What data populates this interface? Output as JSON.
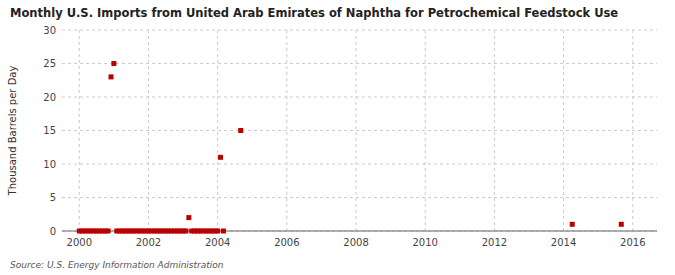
{
  "chart_data": {
    "type": "scatter",
    "title": "Monthly U.S. Imports from United Arab Emirates of Naphtha for Petrochemical Feedstock Use",
    "y_label": "Thousand Barrels per Day",
    "source": "Source: U.S. Energy Information Administration",
    "color": "#bb0000",
    "marker": "square",
    "grid": true,
    "xlim": [
      1999.5,
      2016.7
    ],
    "ylim": [
      0,
      30
    ],
    "xticks": [
      2000,
      2002,
      2004,
      2006,
      2008,
      2010,
      2012,
      2014,
      2016
    ],
    "yticks": [
      0,
      5,
      10,
      15,
      20,
      25,
      30
    ],
    "x": [
      2000.0,
      2000.083,
      2000.167,
      2000.25,
      2000.333,
      2000.417,
      2000.5,
      2000.583,
      2000.667,
      2000.75,
      2000.833,
      2000.917,
      2001.0,
      2001.083,
      2001.167,
      2001.25,
      2001.333,
      2001.417,
      2001.5,
      2001.583,
      2001.667,
      2001.75,
      2001.833,
      2001.917,
      2002.0,
      2002.083,
      2002.167,
      2002.25,
      2002.333,
      2002.417,
      2002.5,
      2002.583,
      2002.667,
      2002.75,
      2002.833,
      2002.917,
      2003.0,
      2003.083,
      2003.167,
      2003.25,
      2003.333,
      2003.417,
      2003.5,
      2003.583,
      2003.667,
      2003.75,
      2003.833,
      2003.917,
      2004.0,
      2004.083,
      2004.167,
      2004.667,
      2014.25,
      2015.667
    ],
    "values": [
      0.0,
      0.0,
      0.0,
      0.0,
      0.0,
      0.0,
      0.0,
      0.0,
      0.0,
      0.0,
      0.0,
      23.0,
      25.0,
      0.0,
      0.0,
      0.0,
      0.0,
      0.0,
      0.0,
      0.0,
      0.0,
      0.0,
      0.0,
      0.0,
      0.0,
      0.0,
      0.0,
      0.0,
      0.0,
      0.0,
      0.0,
      0.0,
      0.0,
      0.0,
      0.0,
      0.0,
      0.0,
      0.0,
      2.0,
      0.0,
      0.0,
      0.0,
      0.0,
      0.0,
      0.0,
      0.0,
      0.0,
      0.0,
      0.0,
      11.0,
      0.0,
      15.0,
      1.0,
      1.0
    ]
  }
}
